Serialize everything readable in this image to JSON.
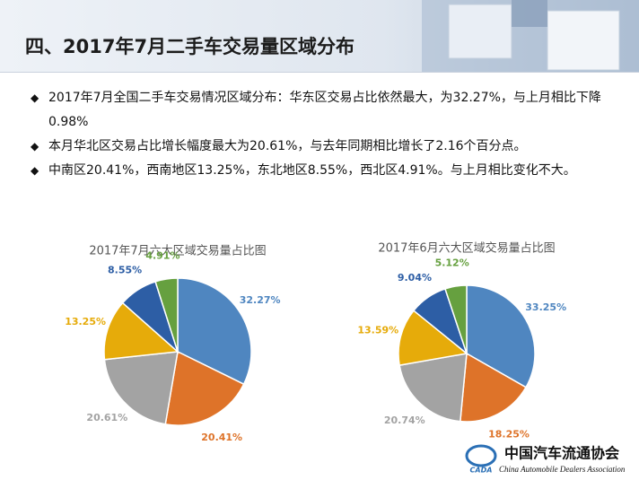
{
  "header": {
    "title": "四、2017年7月二手车交易量区域分布"
  },
  "bullets": [
    "2017年7月全国二手车交易情况区域分布：华东区交易占比依然最大，为32.27%，与上月相比下降0.98%",
    "本月华北区交易占比增长幅度最大为20.61%，与去年同期相比增长了2.16个百分点。",
    "中南区20.41%，西南地区13.25%，东北地区8.55%，西北区4.91%。与上月相比变化不大。"
  ],
  "chart_data": [
    {
      "type": "pie",
      "title": "2017年7月六大区域交易量占比图",
      "values": [
        32.27,
        20.41,
        20.61,
        13.25,
        8.55,
        4.91
      ],
      "value_labels": [
        "32.27%",
        "20.41%",
        "20.61%",
        "13.25%",
        "8.55%",
        "4.91%"
      ],
      "colors": [
        "#4f86c0",
        "#de7329",
        "#a3a3a3",
        "#e6ab0a",
        "#2d5ea5",
        "#66a03f"
      ]
    },
    {
      "type": "pie",
      "title": "2017年6月六大区域交易量占比图",
      "values": [
        33.25,
        18.25,
        20.74,
        13.59,
        9.04,
        5.12
      ],
      "value_labels": [
        "33.25%",
        "18.25%",
        "20.74%",
        "13.59%",
        "9.04%",
        "5.12%"
      ],
      "colors": [
        "#4f86c0",
        "#de7329",
        "#a3a3a3",
        "#e6ab0a",
        "#2d5ea5",
        "#66a03f"
      ]
    }
  ],
  "logo": {
    "name": "中国汽车流通协会",
    "english": "China Automobile Dealers Association",
    "abbr": "CADA"
  }
}
